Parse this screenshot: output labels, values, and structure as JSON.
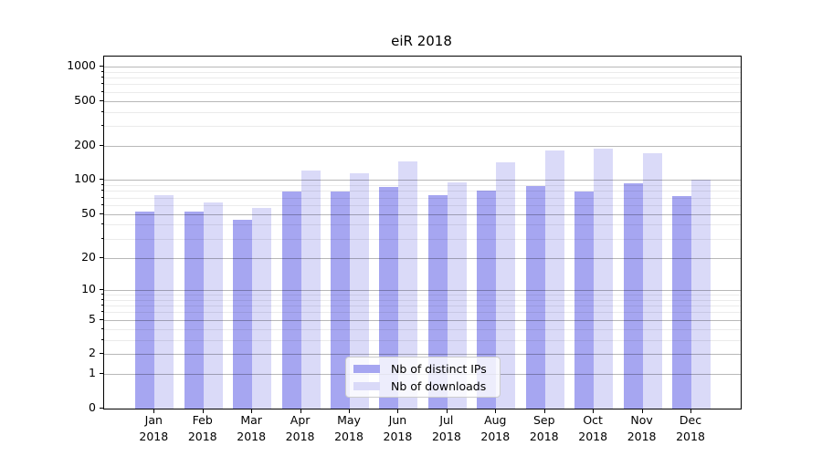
{
  "title": "eiR 2018",
  "legend": {
    "items": [
      {
        "label": "Nb of distinct IPs",
        "color": "#a6a6f1"
      },
      {
        "label": "Nb of downloads",
        "color": "#dadaf8"
      }
    ]
  },
  "chart_data": {
    "type": "bar",
    "title": "eiR 2018",
    "categories": [
      "Jan",
      "Feb",
      "Mar",
      "Apr",
      "May",
      "Jun",
      "Jul",
      "Aug",
      "Sep",
      "Oct",
      "Nov",
      "Dec"
    ],
    "category_year": "2018",
    "series": [
      {
        "name": "Nb of distinct IPs",
        "color": "#a6a6f1",
        "values": [
          52,
          52,
          44,
          79,
          79,
          87,
          73,
          80,
          88,
          79,
          93,
          72
        ]
      },
      {
        "name": "Nb of downloads",
        "color": "#dadaf8",
        "values": [
          74,
          63,
          57,
          121,
          115,
          147,
          96,
          144,
          183,
          188,
          173,
          100
        ]
      }
    ],
    "xlabel": "",
    "ylabel": "",
    "y_scale": "log10(value+1)",
    "y_ticks": [
      0,
      1,
      2,
      5,
      10,
      20,
      50,
      100,
      200,
      500,
      1000
    ],
    "ylim": [
      0,
      1400
    ],
    "grid": true,
    "grid_over_bars": true,
    "legend_position": "lower-center"
  }
}
